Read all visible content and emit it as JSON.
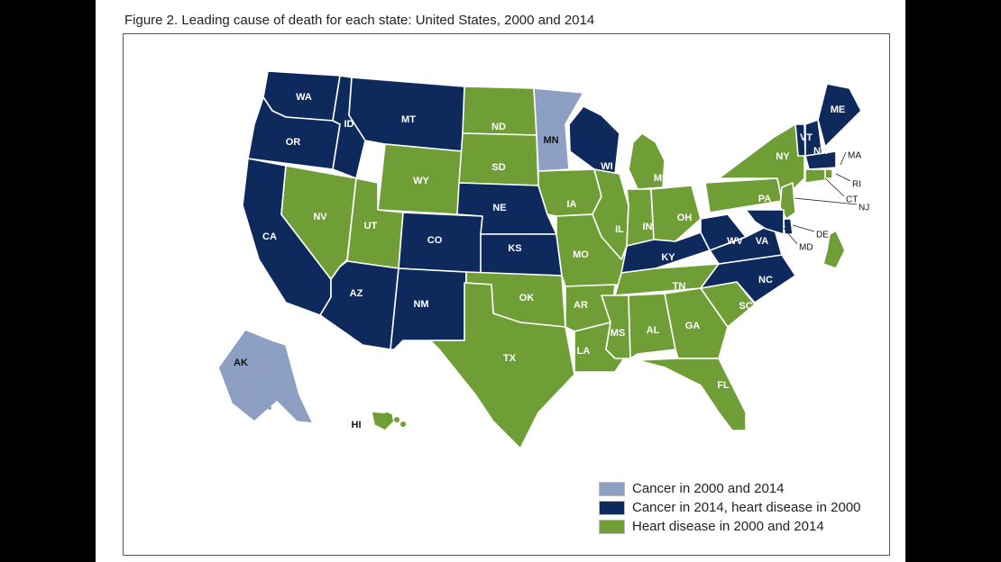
{
  "figure": {
    "title": "Figure 2. Leading cause of death for each state: United States, 2000 and 2014"
  },
  "colors": {
    "cancer_both": "#8d9fc2",
    "cancer_2014": "#0e2a5c",
    "heart_both": "#6f9e37"
  },
  "legend": [
    {
      "key": "cancer_both",
      "label": "Cancer in 2000 and 2014"
    },
    {
      "key": "cancer_2014",
      "label": "Cancer in 2014, heart disease in 2000"
    },
    {
      "key": "heart_both",
      "label": "Heart disease in 2000 and 2014"
    }
  ],
  "states": {
    "WA": "cancer_2014",
    "OR": "cancer_2014",
    "CA": "cancer_2014",
    "ID": "cancer_2014",
    "NV": "heart_both",
    "MT": "cancer_2014",
    "WY": "heart_both",
    "UT": "heart_both",
    "AZ": "cancer_2014",
    "CO": "cancer_2014",
    "NM": "cancer_2014",
    "ND": "heart_both",
    "SD": "heart_both",
    "NE": "cancer_2014",
    "KS": "cancer_2014",
    "OK": "heart_both",
    "TX": "heart_both",
    "MN": "cancer_both",
    "IA": "heart_both",
    "MO": "heart_both",
    "AR": "heart_both",
    "LA": "heart_both",
    "WI": "cancer_2014",
    "IL": "heart_both",
    "MI": "heart_both",
    "IN": "heart_both",
    "OH": "heart_both",
    "KY": "cancer_2014",
    "TN": "heart_both",
    "MS": "heart_both",
    "AL": "heart_both",
    "GA": "heart_both",
    "FL": "heart_both",
    "SC": "heart_both",
    "NC": "cancer_2014",
    "VA": "cancer_2014",
    "WV": "cancer_2014",
    "PA": "heart_both",
    "NY": "heart_both",
    "VT": "cancer_2014",
    "NH": "cancer_2014",
    "ME": "cancer_2014",
    "MA": "cancer_2014",
    "RI": "heart_both",
    "CT": "heart_both",
    "NJ": "heart_both",
    "DE": "cancer_2014",
    "MD": "cancer_2014",
    "DC": "heart_both",
    "AK": "cancer_both",
    "HI": "heart_both"
  }
}
